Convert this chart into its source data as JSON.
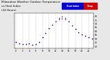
{
  "title_line1": "Milwaukee Weather Outdoor Temperature",
  "title_line2": "vs Heat Index",
  "title_line3": "(24 Hours)",
  "bg_color": "#e8e8e8",
  "plot_bg": "#ffffff",
  "hours": [
    0,
    1,
    2,
    3,
    4,
    5,
    6,
    7,
    8,
    9,
    10,
    11,
    12,
    13,
    14,
    15,
    16,
    17,
    18,
    19,
    20,
    21,
    22,
    23
  ],
  "temp": [
    46,
    44,
    43,
    43,
    44,
    42,
    43,
    46,
    52,
    58,
    64,
    69,
    73,
    76,
    77,
    76,
    73,
    68,
    63,
    59,
    56,
    54,
    52,
    50
  ],
  "heat_index": [
    46,
    44,
    43,
    43,
    44,
    42,
    43,
    46,
    52,
    58,
    64,
    69,
    73,
    78,
    80,
    78,
    73,
    68,
    63,
    59,
    56,
    54,
    52,
    50
  ],
  "temp_color": "#cc0000",
  "heat_color": "#0000cc",
  "ylim": [
    38,
    84
  ],
  "ytick_vals": [
    40,
    45,
    50,
    55,
    60,
    65,
    70,
    75,
    80
  ],
  "ytick_labels": [
    "40",
    "45",
    "50",
    "55",
    "60",
    "65",
    "70",
    "75",
    "80"
  ],
  "xtick_vals": [
    0,
    2,
    4,
    6,
    8,
    10,
    12,
    14,
    16,
    18,
    20,
    22
  ],
  "xtick_labels": [
    "0",
    "2",
    "4",
    "6",
    "8",
    "10",
    "12",
    "14",
    "16",
    "18",
    "20",
    "22"
  ],
  "grid_hours": [
    0,
    2,
    4,
    6,
    8,
    10,
    12,
    14,
    16,
    18,
    20,
    22
  ],
  "grid_color": "#aaaaaa",
  "legend_blue_label": "Heat Index",
  "legend_red_label": "Temp"
}
